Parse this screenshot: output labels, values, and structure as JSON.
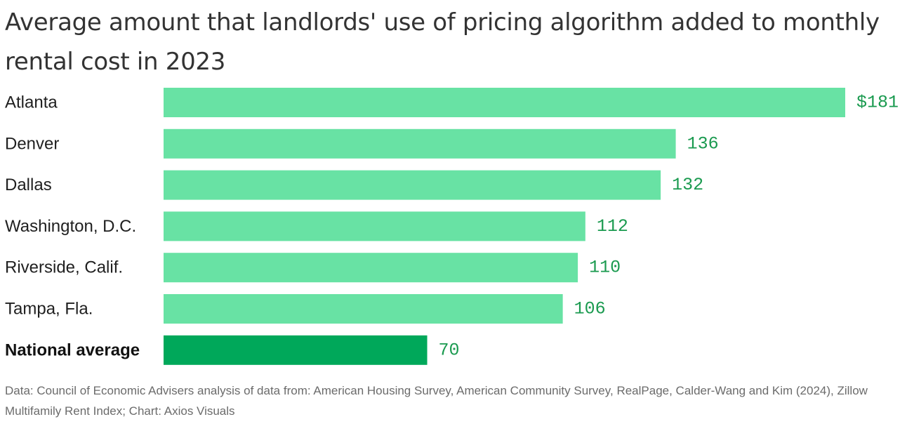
{
  "title": "Average amount that landlords' use of pricing algorithm added to monthly rental cost in 2023",
  "source": "Data: Council of Economic Advisers analysis of data from: American Housing Survey, American Community Survey, RealPage, Calder-Wang and Kim (2024), Zillow Multifamily Rent Index; Chart: Axios Visuals",
  "colors": {
    "bar": "#68e2a4",
    "bar_highlight": "#00a85a",
    "value_text": "#1a9a4f"
  },
  "chart_data": {
    "type": "bar",
    "orientation": "horizontal",
    "title": "Average amount that landlords' use of pricing algorithm added to monthly rental cost in 2023",
    "xlabel": "",
    "ylabel": "",
    "unit": "$",
    "xlim": [
      0,
      181
    ],
    "grid": false,
    "legend": "none",
    "categories": [
      "Atlanta",
      "Denver",
      "Dallas",
      "Washington, D.C.",
      "Riverside, Calif.",
      "Tampa, Fla.",
      "National average"
    ],
    "values": [
      181,
      136,
      132,
      112,
      110,
      106,
      70
    ],
    "value_labels": [
      "$181",
      "136",
      "132",
      "112",
      "110",
      "106",
      "70"
    ],
    "highlight": [
      "National average"
    ]
  }
}
